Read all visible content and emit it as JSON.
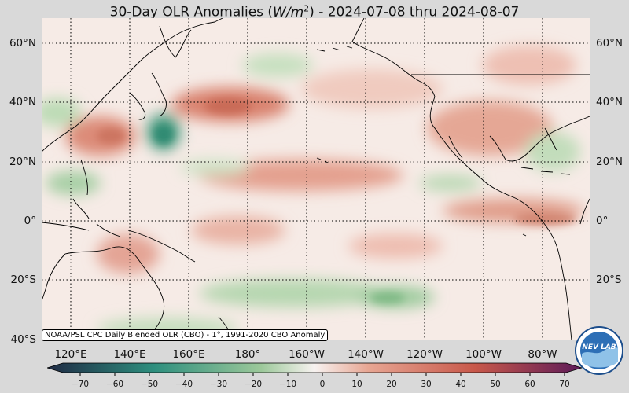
{
  "title": {
    "prefix": "30-Day OLR Anomalies (",
    "unit": "W/m",
    "unit_exp": "2",
    "suffix": ") - 2024-07-08 thru 2024-08-07"
  },
  "lat_labels": [
    "60°N",
    "40°N",
    "20°N",
    "0°",
    "20°S",
    "40°S"
  ],
  "lat_labels_right": [
    "60°N",
    "40°N",
    "20°N",
    "0°",
    "20°S"
  ],
  "lon_labels": [
    "120°E",
    "140°E",
    "160°E",
    "180°",
    "160°W",
    "140°W",
    "120°W",
    "100°W",
    "80°W"
  ],
  "source_note": "NOAA/PSL CPC Daily Blended OLR (CBO) - 1°, 1991-2020 CBO Anomaly",
  "colorbar": {
    "ticks": [
      "−70",
      "−60",
      "−50",
      "−40",
      "−30",
      "−20",
      "−10",
      "0",
      "10",
      "20",
      "30",
      "40",
      "50",
      "60",
      "70"
    ],
    "range": [
      -75,
      75
    ],
    "colors": {
      "negative_extreme": "#1f2a44",
      "negative_strong": "#2e8f7e",
      "negative_weak": "#9cc89a",
      "neutral": "#f7f2f0",
      "positive_weak": "#e7a693",
      "positive_strong": "#c8584a",
      "positive_extreme": "#5c1a58"
    }
  },
  "logo": {
    "text": "NEV LAB",
    "icon": "noaa-logo-icon"
  },
  "map": {
    "projection": "cylindrical",
    "lon_range": [
      "110°E",
      "70°W"
    ],
    "lat_range": [
      "40°S",
      "67°N"
    ],
    "gridlines": true
  }
}
